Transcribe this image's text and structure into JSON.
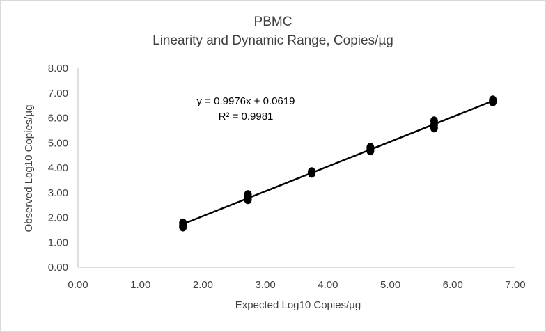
{
  "chart_data": {
    "type": "scatter",
    "title": "PBMC",
    "subtitle": "Linearity and Dynamic Range, Copies/µg",
    "xlabel": "Expected Log10 Copies/µg",
    "ylabel": "Observed Log10 Copies/µg",
    "xlim": [
      0,
      7
    ],
    "ylim": [
      0,
      8
    ],
    "x_ticks": [
      "0.00",
      "1.00",
      "2.00",
      "3.00",
      "4.00",
      "5.00",
      "6.00",
      "7.00"
    ],
    "y_ticks": [
      "0.00",
      "1.00",
      "2.00",
      "3.00",
      "4.00",
      "5.00",
      "6.00",
      "7.00",
      "8.00"
    ],
    "grid": false,
    "legend": "none",
    "series": [
      {
        "points": [
          {
            "x": 1.68,
            "y": 1.78
          },
          {
            "x": 1.68,
            "y": 1.68
          },
          {
            "x": 1.68,
            "y": 1.62
          },
          {
            "x": 2.72,
            "y": 2.92
          },
          {
            "x": 2.72,
            "y": 2.85
          },
          {
            "x": 2.72,
            "y": 2.72
          },
          {
            "x": 3.74,
            "y": 3.84
          },
          {
            "x": 3.74,
            "y": 3.78
          },
          {
            "x": 4.68,
            "y": 4.82
          },
          {
            "x": 4.68,
            "y": 4.75
          },
          {
            "x": 4.68,
            "y": 4.68
          },
          {
            "x": 5.7,
            "y": 5.88
          },
          {
            "x": 5.7,
            "y": 5.72
          },
          {
            "x": 5.7,
            "y": 5.6
          },
          {
            "x": 6.64,
            "y": 6.72
          },
          {
            "x": 6.64,
            "y": 6.65
          }
        ],
        "marker_color": "#000000"
      }
    ],
    "trendline": {
      "slope": 0.9976,
      "intercept": 0.0619,
      "x_range": [
        1.68,
        6.64
      ],
      "color": "#000000",
      "equation": "y = 0.9976x + 0.0619",
      "r_squared": "R² = 0.9981"
    },
    "colors": {
      "text": "#404040",
      "axis": "#bfbfbf",
      "marker": "#000000"
    }
  }
}
